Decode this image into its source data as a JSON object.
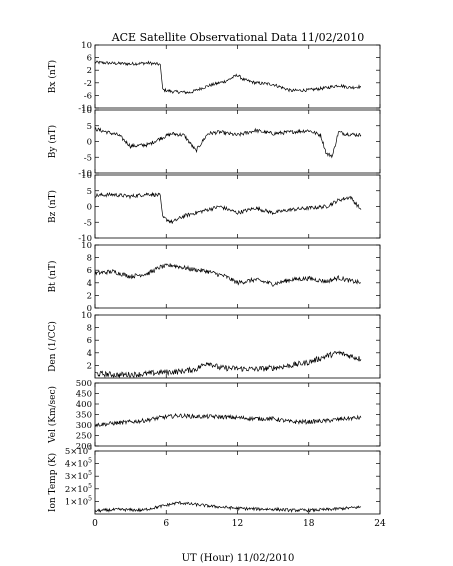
{
  "title": "ACE Satellite Observational Data   11/02/2010",
  "xlabel": "UT (Hour)   11/02/2010",
  "colors": {
    "line": "#000000",
    "frame": "#000000",
    "background": "#ffffff"
  },
  "chart_data": [
    {
      "type": "line",
      "ylabel": "Bx (nT)",
      "ylim": [
        -10,
        10
      ],
      "yticks": [
        10,
        6,
        2,
        -2,
        -6,
        -10
      ],
      "xlim": [
        0,
        24
      ],
      "xticks": [
        0,
        6,
        12,
        18,
        24
      ],
      "noise": 0.5,
      "series": [
        {
          "x": [
            0,
            1.5,
            3,
            4.5,
            5.5,
            5.7,
            6.5,
            8,
            9.5,
            11,
            12,
            12.5,
            13.5,
            15,
            16.5,
            18,
            19.5,
            20.5,
            21.5,
            22.4
          ],
          "y": [
            4.5,
            4.2,
            4,
            4.3,
            3.8,
            -4.2,
            -4.8,
            -5.1,
            -3,
            -1.5,
            0.5,
            -1,
            -2,
            -2.5,
            -4.5,
            -4.3,
            -3.6,
            -2.8,
            -3.5,
            -3.2
          ]
        }
      ]
    },
    {
      "type": "line",
      "ylabel": "By (nT)",
      "ylim": [
        -10,
        10
      ],
      "yticks": [
        10,
        5,
        0,
        -5,
        -10
      ],
      "xlim": [
        0,
        24
      ],
      "xticks": [
        0,
        6,
        12,
        18,
        24
      ],
      "noise": 0.6,
      "series": [
        {
          "x": [
            0,
            1,
            2,
            3,
            4.5,
            5.5,
            6.5,
            7.5,
            8.5,
            9.5,
            10.5,
            12,
            13.5,
            15,
            16.5,
            18,
            19,
            19.5,
            20,
            20.5,
            21,
            22.4
          ],
          "y": [
            4,
            3,
            2,
            -1.5,
            -1,
            1,
            2.5,
            2,
            -3,
            2.5,
            3,
            2,
            3.5,
            2.5,
            3,
            3.5,
            2,
            -4,
            -4.5,
            3,
            2.5,
            2
          ]
        }
      ]
    },
    {
      "type": "line",
      "ylabel": "Bz (nT)",
      "ylim": [
        -10,
        10
      ],
      "yticks": [
        10,
        5,
        0,
        -5,
        -10
      ],
      "xlim": [
        0,
        24
      ],
      "xticks": [
        0,
        6,
        12,
        18,
        24
      ],
      "noise": 0.6,
      "series": [
        {
          "x": [
            0,
            1.5,
            3,
            4.5,
            5.5,
            5.7,
            6.5,
            7.5,
            8.5,
            9.5,
            10.5,
            12,
            13.5,
            15,
            16.5,
            18,
            19.5,
            20.5,
            21.5,
            22.4
          ],
          "y": [
            3.5,
            3.8,
            3.2,
            4,
            3.5,
            -3.5,
            -5,
            -3,
            -2,
            -1,
            0,
            -2,
            -0.5,
            -2,
            -1,
            -0.5,
            0,
            2,
            3,
            -1
          ]
        }
      ]
    },
    {
      "type": "line",
      "ylabel": "Bt (nT)",
      "ylim": [
        0,
        10
      ],
      "yticks": [
        10,
        8,
        6,
        4,
        2,
        0
      ],
      "xlim": [
        0,
        24
      ],
      "xticks": [
        0,
        6,
        12,
        18,
        24
      ],
      "noise": 0.35,
      "series": [
        {
          "x": [
            0,
            1.5,
            3,
            4.5,
            5.5,
            6.5,
            8,
            9.5,
            11,
            12,
            13.5,
            15,
            16.5,
            18,
            19.5,
            20.5,
            21.5,
            22.4
          ],
          "y": [
            5.5,
            5.8,
            5,
            5.5,
            6.5,
            6.8,
            6.2,
            5.8,
            5,
            4,
            4.5,
            3.8,
            4.5,
            4.7,
            4.2,
            4.8,
            4.3,
            4
          ]
        }
      ]
    },
    {
      "type": "line",
      "ylabel": "Den (1/CC)",
      "ylim": [
        0,
        10
      ],
      "yticks": [
        10,
        8,
        6,
        4,
        2
      ],
      "xlim": [
        0,
        24
      ],
      "xticks": [
        0,
        6,
        12,
        18,
        24
      ],
      "noise": 0.45,
      "series": [
        {
          "x": [
            0,
            2,
            4,
            5.5,
            7,
            8.5,
            9.5,
            10.5,
            12,
            13.5,
            15,
            16.5,
            18,
            19.5,
            20.5,
            21.5,
            22.4
          ],
          "y": [
            0.7,
            0.5,
            0.6,
            0.9,
            1,
            1.4,
            2.5,
            1.6,
            1.5,
            1.4,
            1.6,
            2,
            2.5,
            3.5,
            4,
            3.5,
            3
          ]
        }
      ]
    },
    {
      "type": "line",
      "ylabel": "Vel (Km/sec)",
      "ylim": [
        200,
        500
      ],
      "yticks": [
        500,
        450,
        400,
        350,
        300,
        250,
        200
      ],
      "xlim": [
        0,
        24
      ],
      "xticks": [
        0,
        6,
        12,
        18,
        24
      ],
      "noise": 10,
      "series": [
        {
          "x": [
            0,
            2,
            4,
            5.5,
            7,
            8.5,
            10,
            12,
            13.5,
            15,
            16.5,
            18,
            19.5,
            21,
            22.4
          ],
          "y": [
            300,
            310,
            320,
            335,
            345,
            340,
            340,
            335,
            330,
            330,
            315,
            315,
            320,
            330,
            335
          ]
        }
      ]
    },
    {
      "type": "line",
      "ylabel": "Ion Temp (K)",
      "ylim": [
        0,
        500000
      ],
      "yticks": [
        500000,
        400000,
        300000,
        200000,
        100000
      ],
      "ytick_base": [
        "5×10",
        "4×10",
        "3×10",
        "2×10",
        "1×10"
      ],
      "ytick_exp": [
        "5",
        "5",
        "5",
        "5",
        "5"
      ],
      "xlim": [
        0,
        24
      ],
      "xticks": [
        0,
        6,
        12,
        18,
        24
      ],
      "noise": 12000,
      "series": [
        {
          "x": [
            0,
            2,
            4,
            5.5,
            7,
            8.5,
            10,
            12,
            13.5,
            15,
            16.5,
            18,
            19.5,
            21,
            22.4
          ],
          "y": [
            25000,
            35000,
            30000,
            60000,
            90000,
            75000,
            60000,
            45000,
            40000,
            38000,
            30000,
            30000,
            35000,
            45000,
            55000
          ]
        }
      ]
    }
  ]
}
